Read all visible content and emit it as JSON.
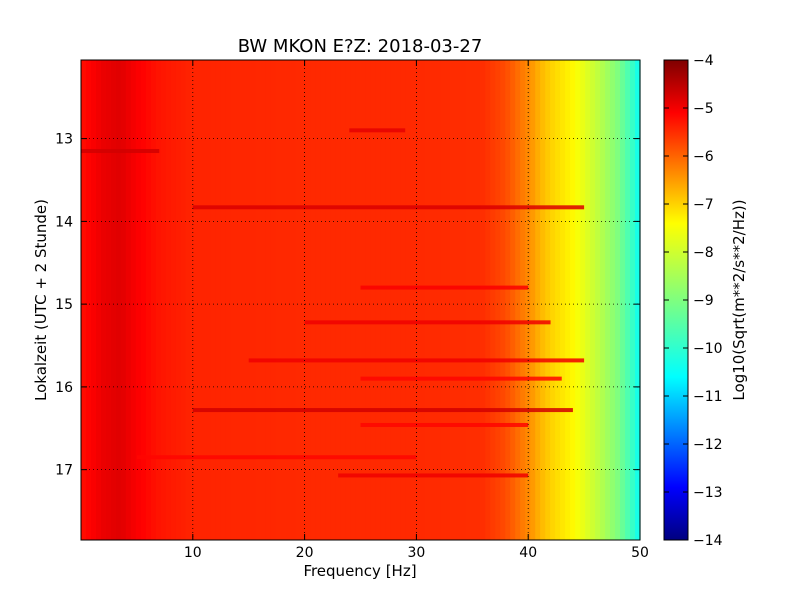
{
  "chart_data": {
    "type": "heatmap",
    "title": "BW MKON E?Z: 2018-03-27",
    "xlabel": "Frequency [Hz]",
    "ylabel": "Lokalzeit (UTC + 2 Stunde)",
    "xlim": [
      0,
      50
    ],
    "ylim": [
      12.05,
      17.85
    ],
    "y_inverted": true,
    "x_ticks": [
      10,
      20,
      30,
      40,
      50
    ],
    "y_ticks": [
      13,
      14,
      15,
      16,
      17
    ],
    "grid": true,
    "colormap": "jet",
    "colorbar": {
      "label": "Log10(Sqrt(m**2/s**2/Hz))",
      "range": [
        -14,
        -4
      ],
      "ticks": [
        -4,
        -5,
        -6,
        -7,
        -8,
        -9,
        -10,
        -11,
        -12,
        -13,
        -14
      ]
    },
    "frequency_profile": {
      "x": [
        0,
        2,
        3.5,
        5,
        7,
        10,
        20,
        30,
        36,
        38,
        40,
        41,
        42,
        44,
        46,
        48,
        49.5,
        50
      ],
      "values": [
        -5.4,
        -5.05,
        -4.95,
        -5.2,
        -5.45,
        -5.6,
        -5.65,
        -5.65,
        -5.7,
        -6.0,
        -6.6,
        -7.0,
        -7.3,
        -7.7,
        -8.3,
        -9.0,
        -9.8,
        -10.2
      ]
    },
    "bands": [
      {
        "time": 12.9,
        "x_start": 24,
        "x_end": 29,
        "value": -5.0
      },
      {
        "time": 13.15,
        "x_start": 0,
        "x_end": 7,
        "value": -4.8
      },
      {
        "time": 13.83,
        "x_start": 10,
        "x_end": 45,
        "value": -4.9
      },
      {
        "time": 14.8,
        "x_start": 25,
        "x_end": 40,
        "value": -5.2
      },
      {
        "time": 15.22,
        "x_start": 20,
        "x_end": 42,
        "value": -5.1
      },
      {
        "time": 15.68,
        "x_start": 15,
        "x_end": 45,
        "value": -5.1
      },
      {
        "time": 15.9,
        "x_start": 25,
        "x_end": 43,
        "value": -5.3
      },
      {
        "time": 16.28,
        "x_start": 10,
        "x_end": 44,
        "value": -4.8
      },
      {
        "time": 16.46,
        "x_start": 25,
        "x_end": 40,
        "value": -5.3
      },
      {
        "time": 16.85,
        "x_start": 5,
        "x_end": 30,
        "value": -5.3
      },
      {
        "time": 17.07,
        "x_start": 23,
        "x_end": 40,
        "value": -5.1
      }
    ]
  }
}
